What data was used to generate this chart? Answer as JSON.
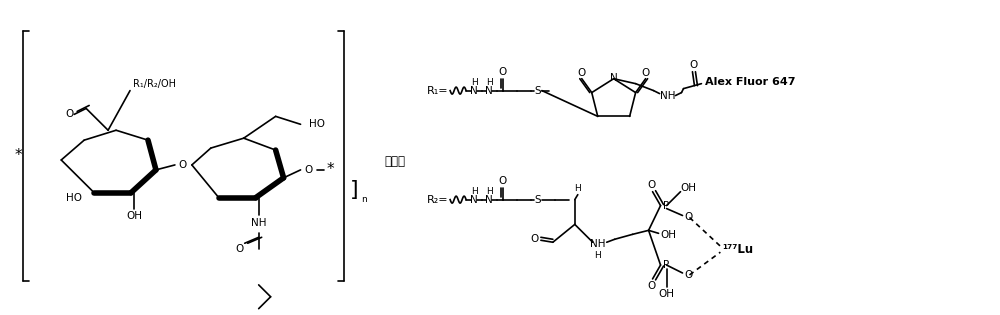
{
  "background_color": "#ffffff",
  "figure_width": 10.0,
  "figure_height": 3.15,
  "dpi": 100,
  "note_text": "其中，",
  "alex_fluor_label": "Alex Fluor 647",
  "R1_label": "R₁=",
  "R2_label": "R₂="
}
